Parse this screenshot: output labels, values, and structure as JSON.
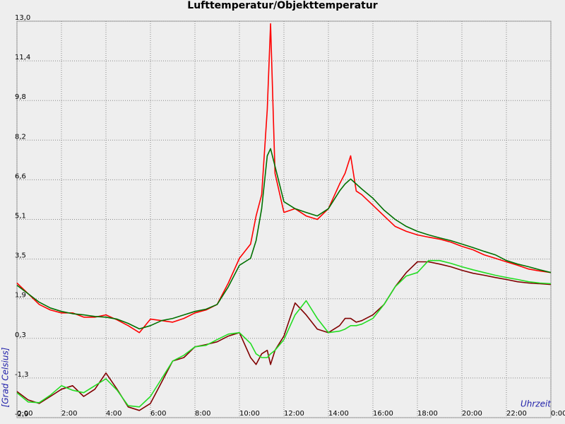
{
  "chart_data": {
    "type": "line",
    "title": "Lufttemperatur/Objekttemperatur",
    "y_label": "[Grad Celsius]",
    "x_label": "Uhrzeit",
    "grid": true,
    "xlim": [
      0,
      24
    ],
    "ylim": [
      -2.9,
      13.0
    ],
    "xticks": [
      {
        "value": 0,
        "label": "0:00"
      },
      {
        "value": 2,
        "label": "2:00"
      },
      {
        "value": 4,
        "label": "4:00"
      },
      {
        "value": 6,
        "label": "6:00"
      },
      {
        "value": 8,
        "label": "8:00"
      },
      {
        "value": 10,
        "label": "10:00"
      },
      {
        "value": 12,
        "label": "12:00"
      },
      {
        "value": 14,
        "label": "14:00"
      },
      {
        "value": 16,
        "label": "16:00"
      },
      {
        "value": 18,
        "label": "18:00"
      },
      {
        "value": 20,
        "label": "20:00"
      },
      {
        "value": 22,
        "label": "22:00"
      },
      {
        "value": 24,
        "label": "0:00"
      }
    ],
    "yticks": [
      {
        "value": 13.0,
        "label": "13,0"
      },
      {
        "value": 11.41,
        "label": "11,4"
      },
      {
        "value": 9.82,
        "label": "9,8"
      },
      {
        "value": 8.23,
        "label": "8,2"
      },
      {
        "value": 6.64,
        "label": "6,6"
      },
      {
        "value": 5.05,
        "label": "5,1"
      },
      {
        "value": 3.46,
        "label": "3,5"
      },
      {
        "value": 1.87,
        "label": "1,9"
      },
      {
        "value": 0.28,
        "label": "0,3"
      },
      {
        "value": -1.31,
        "label": "-1,3"
      },
      {
        "value": -2.9,
        "label": "-2,9"
      }
    ],
    "x": [
      0,
      0.5,
      1,
      1.5,
      2,
      2.5,
      3,
      3.5,
      4,
      4.5,
      5,
      5.5,
      6,
      6.5,
      7,
      7.5,
      8,
      8.5,
      9,
      9.5,
      10,
      10.5,
      10.75,
      11,
      11.25,
      11.4,
      11.6,
      12,
      12.5,
      13,
      13.5,
      14,
      14.5,
      14.75,
      15,
      15.25,
      15.5,
      16,
      16.5,
      17,
      17.5,
      18,
      18.5,
      19,
      19.5,
      20,
      20.5,
      21,
      21.5,
      22,
      22.5,
      23,
      23.5,
      24
    ],
    "series": [
      {
        "color": "#ff0000",
        "values": [
          2.5,
          2.07,
          1.64,
          1.42,
          1.3,
          1.3,
          1.13,
          1.13,
          1.22,
          1.02,
          0.79,
          0.51,
          1.05,
          0.99,
          0.93,
          1.08,
          1.3,
          1.42,
          1.64,
          2.5,
          3.49,
          4.06,
          5.19,
          6.04,
          9.45,
          12.9,
          6.9,
          5.33,
          5.48,
          5.19,
          5.05,
          5.48,
          6.47,
          6.9,
          7.6,
          6.19,
          6.04,
          5.62,
          5.19,
          4.77,
          4.57,
          4.43,
          4.34,
          4.26,
          4.14,
          3.97,
          3.83,
          3.63,
          3.49,
          3.35,
          3.21,
          3.06,
          2.98,
          2.92
        ]
      },
      {
        "color": "#007000",
        "values": [
          2.41,
          2.07,
          1.73,
          1.5,
          1.36,
          1.27,
          1.22,
          1.16,
          1.13,
          1.05,
          0.88,
          0.66,
          0.79,
          0.99,
          1.08,
          1.22,
          1.36,
          1.45,
          1.64,
          2.35,
          3.21,
          3.49,
          4.2,
          5.48,
          7.6,
          7.89,
          7.18,
          5.76,
          5.48,
          5.33,
          5.19,
          5.48,
          6.19,
          6.47,
          6.67,
          6.47,
          6.27,
          5.9,
          5.42,
          5.05,
          4.77,
          4.57,
          4.43,
          4.31,
          4.2,
          4.06,
          3.92,
          3.77,
          3.63,
          3.4,
          3.26,
          3.15,
          3.03,
          2.92
        ]
      },
      {
        "color": "#800000",
        "values": [
          -1.85,
          -2.19,
          -2.33,
          -2.05,
          -1.76,
          -1.62,
          -2.05,
          -1.76,
          -1.11,
          -1.76,
          -2.47,
          -2.61,
          -2.33,
          -1.48,
          -0.63,
          -0.49,
          -0.06,
          0.03,
          0.14,
          0.37,
          0.51,
          -0.49,
          -0.77,
          -0.34,
          -0.2,
          -0.77,
          -0.2,
          0.37,
          1.7,
          1.22,
          0.65,
          0.51,
          0.79,
          1.08,
          1.08,
          0.93,
          0.99,
          1.22,
          1.64,
          2.35,
          2.92,
          3.35,
          3.35,
          3.26,
          3.15,
          3.01,
          2.89,
          2.81,
          2.72,
          2.64,
          2.55,
          2.5,
          2.47,
          2.44
        ]
      },
      {
        "color": "#22dd22",
        "values": [
          -1.9,
          -2.27,
          -2.3,
          -2.0,
          -1.62,
          -1.8,
          -1.9,
          -1.62,
          -1.34,
          -1.8,
          -2.42,
          -2.47,
          -2.05,
          -1.34,
          -0.63,
          -0.4,
          -0.06,
          0.0,
          0.23,
          0.45,
          0.51,
          0.08,
          -0.34,
          -0.49,
          -0.49,
          -0.34,
          -0.2,
          0.23,
          1.22,
          1.79,
          1.08,
          0.51,
          0.57,
          0.65,
          0.79,
          0.79,
          0.85,
          1.08,
          1.64,
          2.35,
          2.78,
          2.92,
          3.4,
          3.4,
          3.29,
          3.15,
          3.03,
          2.92,
          2.81,
          2.72,
          2.64,
          2.55,
          2.5,
          2.47
        ]
      }
    ]
  }
}
